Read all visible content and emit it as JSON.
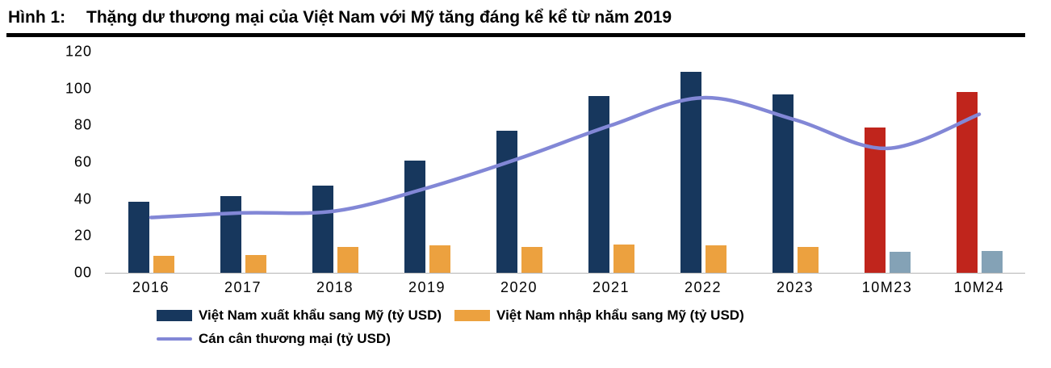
{
  "header": {
    "label": "Hình 1:",
    "title": "Thặng dư thương mại của Việt Nam với Mỹ tăng đáng kể kể từ năm 2019"
  },
  "colors": {
    "export_bar": "#17375d",
    "import_bar": "#eca13f",
    "export_bar_highlight": "#c0251c",
    "import_bar_highlight": "#84a2b6",
    "balance_line": "#8287d6",
    "title_rule": "#000000",
    "axis_line": "#b5b5b5"
  },
  "chart_data": {
    "type": "bar",
    "categories": [
      "2016",
      "2017",
      "2018",
      "2019",
      "2020",
      "2021",
      "2022",
      "2023",
      "10M23",
      "10M24"
    ],
    "series": [
      {
        "name": "Việt Nam xuất khẩu sang Mỹ (tỷ USD)",
        "type": "bar",
        "values": [
          38.5,
          41.5,
          47.5,
          61,
          77,
          96,
          109,
          97,
          79,
          98
        ],
        "colors": [
          "#17375d",
          "#17375d",
          "#17375d",
          "#17375d",
          "#17375d",
          "#17375d",
          "#17375d",
          "#17375d",
          "#c0251c",
          "#c0251c"
        ]
      },
      {
        "name": "Việt Nam nhập khẩu sang Mỹ (tỷ USD)",
        "type": "bar",
        "values": [
          9,
          9.5,
          14,
          15,
          14,
          15.5,
          15,
          14,
          11.5,
          12
        ],
        "colors": [
          "#eca13f",
          "#eca13f",
          "#eca13f",
          "#eca13f",
          "#eca13f",
          "#eca13f",
          "#eca13f",
          "#eca13f",
          "#84a2b6",
          "#84a2b6"
        ]
      },
      {
        "name": "Cán cân thương mại (tỷ USD)",
        "type": "line",
        "values": [
          30,
          32.5,
          33.5,
          46,
          62,
          80,
          95,
          83,
          67.5,
          86
        ],
        "color": "#8287d6"
      }
    ],
    "ylim": [
      0,
      120
    ],
    "ytick_labels": [
      "120",
      "100",
      "80",
      "60",
      "40",
      "20",
      "00"
    ],
    "grid": false,
    "legend_position": "bottom"
  }
}
